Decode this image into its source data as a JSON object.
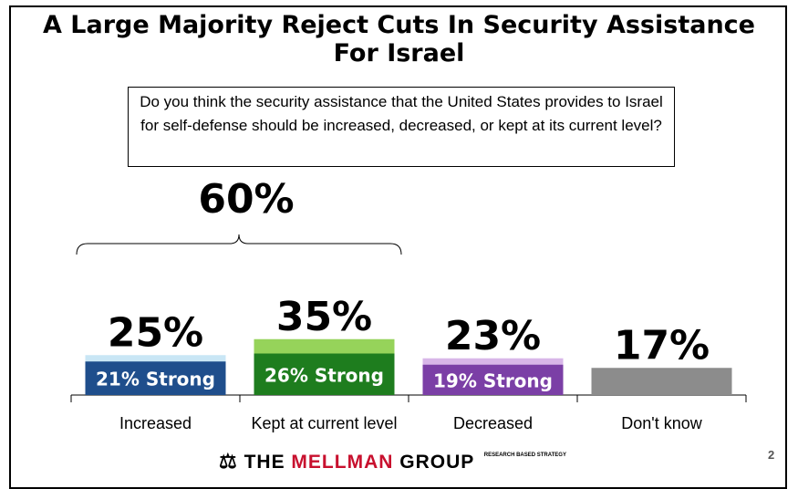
{
  "slide": {
    "title": "A Large Majority Reject Cuts In Security Assistance For Israel",
    "question": "Do you think the security assistance that the United States provides to Israel for self-defense should be increased, decreased, or kept at its current level?",
    "bracket_total": "60%",
    "page_number": "2"
  },
  "footer": {
    "logo_mark": "⚖",
    "logo_word1": "THE",
    "logo_word2": "MELLMAN",
    "logo_word3": "GROUP",
    "logo_tag": "RESEARCH BASED STRATEGY"
  },
  "chart_data": {
    "type": "bar",
    "categories": [
      "Increased",
      "Kept at current level",
      "Decreased",
      "Don't know"
    ],
    "values": [
      25,
      35,
      23,
      17
    ],
    "value_labels": [
      "25%",
      "35%",
      "23%",
      "17%"
    ],
    "strong": [
      21,
      26,
      19,
      null
    ],
    "strong_labels": [
      "21% Strong",
      "26% Strong",
      "19% Strong",
      ""
    ],
    "colors": {
      "strong": [
        "#1f4e8c",
        "#1e7d1e",
        "#7b3fa6",
        "#8c8c8c"
      ],
      "soft": [
        "#c9e6f5",
        "#96d35a",
        "#d8b6e8",
        "#8c8c8c"
      ]
    },
    "ylim": [
      0,
      100
    ],
    "grid": false,
    "legend": "none"
  }
}
